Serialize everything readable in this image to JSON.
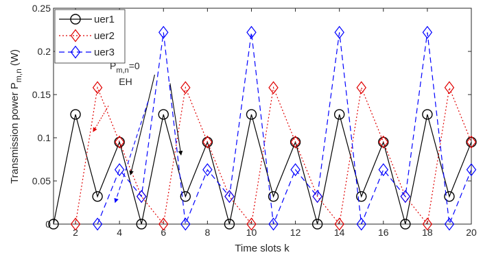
{
  "chart_data": {
    "type": "line",
    "xlabel": "Time slots k",
    "ylabel": "Transmission power P",
    "ylabel_sub": "m,n",
    "ylabel_unit": " (W)",
    "xlim": [
      1,
      20
    ],
    "ylim": [
      0,
      0.25
    ],
    "xticks": [
      2,
      4,
      6,
      8,
      10,
      12,
      14,
      16,
      18,
      20
    ],
    "yticks": [
      0,
      0.05,
      0.1,
      0.15,
      0.2,
      0.25
    ],
    "ytick_labels": [
      "0",
      "0.05",
      "0.1",
      "0.15",
      "0.2",
      "0.25"
    ],
    "grid": false,
    "legend_position": "top-left",
    "series": [
      {
        "name": "uer1",
        "color": "#000000",
        "line_style": "solid",
        "marker": "circle",
        "x": [
          1,
          2,
          3,
          4,
          5,
          6,
          7,
          8,
          9,
          10,
          11,
          12,
          13,
          14,
          15,
          16,
          17,
          18,
          19,
          20
        ],
        "y": [
          0,
          0.127,
          0.032,
          0.095,
          0,
          0.127,
          0.032,
          0.095,
          0,
          0.127,
          0.032,
          0.095,
          0,
          0.127,
          0.032,
          0.095,
          0,
          0.127,
          0.032,
          0.095
        ]
      },
      {
        "name": "uer2",
        "color": "#e00000",
        "line_style": "dotted",
        "marker": "diamond",
        "x": [
          2,
          3,
          4,
          5,
          6,
          7,
          8,
          9,
          10,
          11,
          12,
          13,
          14,
          15,
          16,
          17,
          18,
          19,
          20
        ],
        "y": [
          0,
          0.158,
          0.095,
          0.032,
          0,
          0.158,
          0.095,
          0.032,
          0,
          0.158,
          0.095,
          0.032,
          0,
          0.158,
          0.095,
          0.032,
          0,
          0.158,
          0.095
        ]
      },
      {
        "name": "uer3",
        "color": "#0000ff",
        "line_style": "dashed",
        "marker": "diamond",
        "x": [
          3,
          4,
          5,
          6,
          7,
          8,
          9,
          10,
          11,
          12,
          13,
          14,
          15,
          16,
          17,
          18,
          19,
          20
        ],
        "y": [
          0,
          0.063,
          0.032,
          0.222,
          0,
          0.063,
          0.032,
          0.222,
          0,
          0.063,
          0.032,
          0.222,
          0,
          0.063,
          0.032,
          0.222,
          0,
          0.063
        ]
      }
    ],
    "annotations": [
      {
        "text_main": "P",
        "text_sub": "m,n",
        "text_tail": "=0",
        "text_line2": "EH"
      }
    ],
    "annotation_arrows": [
      {
        "color": "#000000",
        "from": [
          5.6,
          0.173
        ],
        "to": [
          4.5,
          0.057
        ]
      },
      {
        "color": "#000000",
        "from": [
          6.3,
          0.163
        ],
        "to": [
          6.8,
          0.08
        ]
      },
      {
        "color": "#e00000",
        "from": [
          3.5,
          0.137
        ],
        "to": [
          2.8,
          0.107
        ]
      },
      {
        "color": "#0000ff",
        "from": [
          5.3,
          0.142
        ],
        "to": [
          3.8,
          0.025
        ]
      }
    ]
  }
}
